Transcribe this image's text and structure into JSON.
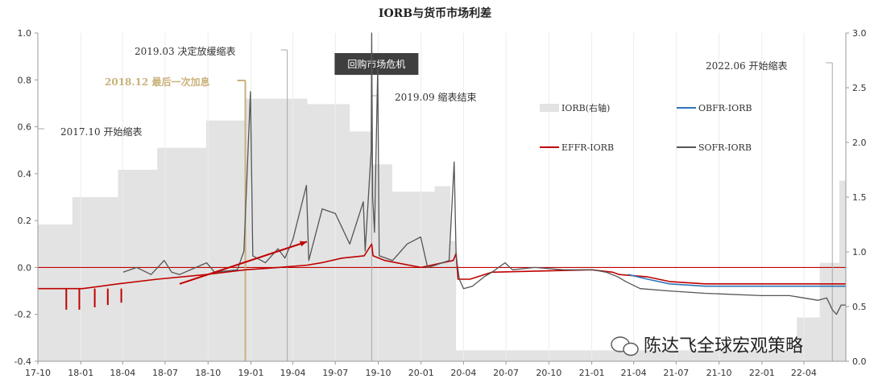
{
  "chart_data": {
    "type": "line",
    "title": "IORB与货币市场利差",
    "x_ticks": [
      "17-10",
      "18-01",
      "18-04",
      "18-07",
      "18-10",
      "19-01",
      "19-04",
      "19-07",
      "19-10",
      "20-01",
      "20-04",
      "20-07",
      "20-10",
      "21-01",
      "21-04",
      "21-07",
      "21-10",
      "22-01",
      "22-04"
    ],
    "y_left": {
      "ticks": [
        "-0.4",
        "-0.2",
        "0.0",
        "0.2",
        "0.4",
        "0.6",
        "0.8",
        "1.0"
      ],
      "ylim": [
        -0.4,
        1.0
      ]
    },
    "y_right": {
      "ticks": [
        "0.0",
        "0.5",
        "1.0",
        "1.5",
        "2.0",
        "2.5",
        "3.0"
      ],
      "ylim": [
        0.0,
        3.0
      ],
      "label": ""
    },
    "legend": [
      {
        "name": "IORB(右轴)",
        "color": "#e3e3e3",
        "kind": "area"
      },
      {
        "name": "OBFR-IORB",
        "color": "#2e75b6",
        "kind": "line"
      },
      {
        "name": "EFFR-IORB",
        "color": "#c00000",
        "kind": "line"
      },
      {
        "name": "SOFR-IORB",
        "color": "#555555",
        "kind": "line"
      }
    ],
    "series": [
      {
        "name": "IORB(右轴)",
        "axis": "right",
        "steps": [
          [
            "2017-10-01",
            1.25
          ],
          [
            "2017-12-14",
            1.5
          ],
          [
            "2018-03-22",
            1.75
          ],
          [
            "2018-06-14",
            1.95
          ],
          [
            "2018-09-27",
            2.2
          ],
          [
            "2018-12-20",
            2.4
          ],
          [
            "2019-05-02",
            2.35
          ],
          [
            "2019-08-01",
            2.1
          ],
          [
            "2019-09-19",
            1.8
          ],
          [
            "2019-10-31",
            1.55
          ],
          [
            "2020-01-30",
            1.6
          ],
          [
            "2020-03-04",
            1.1
          ],
          [
            "2020-03-16",
            0.1
          ],
          [
            "2022-03-17",
            0.4
          ],
          [
            "2022-05-05",
            0.9
          ],
          [
            "2022-06-16",
            1.65
          ],
          [
            "2022-06-30",
            1.65
          ]
        ]
      },
      {
        "name": "EFFR-IORB",
        "axis": "left",
        "points": [
          [
            "2017-10-01",
            -0.09
          ],
          [
            "2018-01-05",
            -0.09
          ],
          [
            "2018-03-22",
            -0.07
          ],
          [
            "2018-06-14",
            -0.05
          ],
          [
            "2018-09-27",
            -0.03
          ],
          [
            "2018-12-20",
            -0.01
          ],
          [
            "2019-03-01",
            0.0
          ],
          [
            "2019-05-02",
            0.01
          ],
          [
            "2019-06-01",
            0.02
          ],
          [
            "2019-07-15",
            0.04
          ],
          [
            "2019-09-01",
            0.05
          ],
          [
            "2019-09-17",
            0.1
          ],
          [
            "2019-09-20",
            0.05
          ],
          [
            "2019-10-15",
            0.03
          ],
          [
            "2020-01-01",
            0.0
          ],
          [
            "2020-03-10",
            0.03
          ],
          [
            "2020-03-16",
            0.06
          ],
          [
            "2020-03-20",
            -0.05
          ],
          [
            "2020-04-15",
            -0.05
          ],
          [
            "2020-06-01",
            -0.02
          ],
          [
            "2021-01-01",
            -0.01
          ],
          [
            "2021-02-15",
            -0.02
          ],
          [
            "2021-03-01",
            -0.03
          ],
          [
            "2021-05-01",
            -0.04
          ],
          [
            "2021-06-17",
            -0.06
          ],
          [
            "2021-09-01",
            -0.07
          ],
          [
            "2022-01-01",
            -0.07
          ],
          [
            "2022-06-30",
            -0.07
          ]
        ],
        "spikes": [
          [
            "2017-12-01",
            -0.18
          ],
          [
            "2017-12-29",
            -0.18
          ],
          [
            "2018-01-31",
            -0.17
          ],
          [
            "2018-02-28",
            -0.16
          ],
          [
            "2018-03-29",
            -0.15
          ]
        ]
      },
      {
        "name": "OBFR-IORB",
        "axis": "left",
        "points": [
          [
            "2021-03-20",
            -0.03
          ],
          [
            "2021-05-01",
            -0.05
          ],
          [
            "2021-06-17",
            -0.07
          ],
          [
            "2021-09-01",
            -0.08
          ],
          [
            "2022-01-01",
            -0.08
          ],
          [
            "2022-06-30",
            -0.08
          ]
        ]
      },
      {
        "name": "SOFR-IORB",
        "axis": "left",
        "points": [
          [
            "2018-04-02",
            -0.02
          ],
          [
            "2018-05-01",
            0.0
          ],
          [
            "2018-06-01",
            -0.03
          ],
          [
            "2018-06-29",
            0.03
          ],
          [
            "2018-07-15",
            -0.02
          ],
          [
            "2018-08-01",
            -0.03
          ],
          [
            "2018-09-28",
            0.02
          ],
          [
            "2018-10-15",
            -0.02
          ],
          [
            "2018-12-03",
            -0.01
          ],
          [
            "2018-12-17",
            0.07
          ],
          [
            "2018-12-31",
            0.75
          ],
          [
            "2019-01-05",
            0.05
          ],
          [
            "2019-02-01",
            0.02
          ],
          [
            "2019-02-28",
            0.08
          ],
          [
            "2019-03-15",
            0.04
          ],
          [
            "2019-04-01",
            0.12
          ],
          [
            "2019-04-30",
            0.35
          ],
          [
            "2019-05-05",
            0.03
          ],
          [
            "2019-06-03",
            0.25
          ],
          [
            "2019-07-01",
            0.23
          ],
          [
            "2019-08-01",
            0.1
          ],
          [
            "2019-08-30",
            0.28
          ],
          [
            "2019-09-03",
            0.07
          ],
          [
            "2019-09-16",
            0.5
          ],
          [
            "2019-09-17",
            1.0
          ],
          [
            "2019-09-19",
            0.3
          ],
          [
            "2019-09-23",
            0.15
          ],
          [
            "2019-09-30",
            0.85
          ],
          [
            "2019-10-03",
            0.05
          ],
          [
            "2019-11-01",
            0.03
          ],
          [
            "2019-12-02",
            0.1
          ],
          [
            "2019-12-31",
            0.13
          ],
          [
            "2020-01-15",
            0.0
          ],
          [
            "2020-02-01",
            0.01
          ],
          [
            "2020-03-01",
            0.03
          ],
          [
            "2020-03-12",
            0.45
          ],
          [
            "2020-03-16",
            0.05
          ],
          [
            "2020-03-23",
            -0.05
          ],
          [
            "2020-04-01",
            -0.09
          ],
          [
            "2020-04-20",
            -0.08
          ],
          [
            "2020-05-15",
            -0.04
          ],
          [
            "2020-06-01",
            -0.02
          ],
          [
            "2020-06-29",
            0.02
          ],
          [
            "2020-07-15",
            -0.01
          ],
          [
            "2020-09-01",
            0.0
          ],
          [
            "2020-11-01",
            -0.01
          ],
          [
            "2021-01-04",
            -0.01
          ],
          [
            "2021-02-01",
            -0.02
          ],
          [
            "2021-02-26",
            -0.04
          ],
          [
            "2021-03-15",
            -0.06
          ],
          [
            "2021-04-15",
            -0.09
          ],
          [
            "2021-06-17",
            -0.1
          ],
          [
            "2021-09-01",
            -0.11
          ],
          [
            "2021-12-31",
            -0.12
          ],
          [
            "2022-03-01",
            -0.12
          ],
          [
            "2022-04-01",
            -0.13
          ],
          [
            "2022-05-01",
            -0.14
          ],
          [
            "2022-05-20",
            -0.13
          ],
          [
            "2022-06-01",
            -0.18
          ],
          [
            "2022-06-10",
            -0.2
          ],
          [
            "2022-06-20",
            -0.16
          ],
          [
            "2022-06-30",
            -0.16
          ]
        ]
      }
    ],
    "annotations": [
      {
        "text": "2017.10 开始缩表",
        "date": "2017-10-01",
        "color": "#333333"
      },
      {
        "text": "2018.12 最后一次加息",
        "date": "2018-12-20",
        "color": "#c9b27a"
      },
      {
        "text": "2019.03 决定放缓缩表",
        "date": "2019-03-20",
        "color": "#333333"
      },
      {
        "text": "回购市场危机",
        "date": "2019-09-17",
        "color": "#333333",
        "boxed": true
      },
      {
        "text": "2019.09 缩表结束",
        "date": "2019-09-17",
        "color": "#333333"
      },
      {
        "text": "2022.06 开始缩表",
        "date": "2022-06-01",
        "color": "#333333"
      }
    ],
    "arrow": {
      "from": [
        "2018-08-01",
        -0.07
      ],
      "to": [
        "2019-05-01",
        0.11
      ],
      "color": "#c00000"
    }
  },
  "watermark": {
    "text": "陈达飞全球宏观策略",
    "icon": "wechat-icon"
  }
}
